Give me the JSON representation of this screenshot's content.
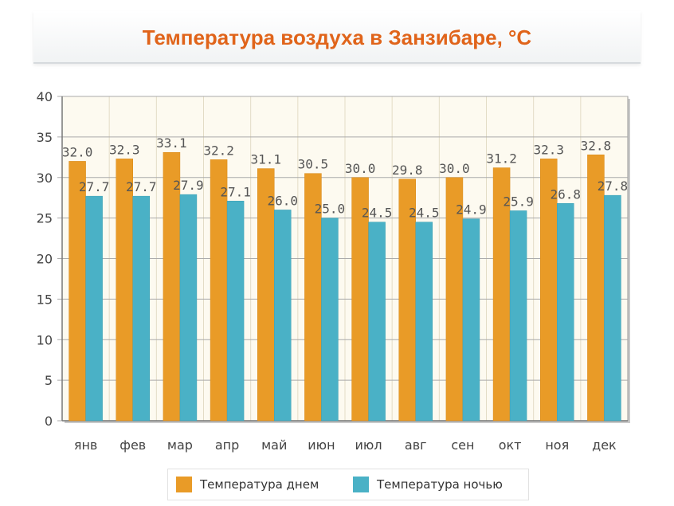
{
  "chart_data": {
    "type": "bar",
    "title": "Температура воздуха в Занзибаре, °C",
    "categories": [
      "янв",
      "фев",
      "мар",
      "апр",
      "май",
      "июн",
      "июл",
      "авг",
      "сен",
      "окт",
      "ноя",
      "дек"
    ],
    "series": [
      {
        "name": "Температура днем",
        "color": "#e99b27",
        "values": [
          32.0,
          32.3,
          33.1,
          32.2,
          31.1,
          30.5,
          30.0,
          29.8,
          30.0,
          31.2,
          32.3,
          32.8
        ]
      },
      {
        "name": "Температура ночью",
        "color": "#4ab1c6",
        "values": [
          27.7,
          27.7,
          27.9,
          27.1,
          26.0,
          25.0,
          24.5,
          24.5,
          24.9,
          25.9,
          26.8,
          27.8
        ]
      }
    ],
    "ylim": [
      0,
      40
    ],
    "yticks": [
      "0",
      "5",
      "10",
      "15",
      "20",
      "25",
      "30",
      "35",
      "40"
    ],
    "xlabel": "",
    "ylabel": "",
    "grid": true,
    "legend_position": "bottom-center",
    "value_labels": [
      [
        "32.0",
        "32.3",
        "33.1",
        "32.2",
        "31.1",
        "30.5",
        "30.0",
        "29.8",
        "30.0",
        "31.2",
        "32.3",
        "32.8"
      ],
      [
        "27.7",
        "27.7",
        "27.9",
        "27.1",
        "26.0",
        "25.0",
        "24.5",
        "24.5",
        "24.9",
        "25.9",
        "26.8",
        "27.8"
      ]
    ]
  }
}
